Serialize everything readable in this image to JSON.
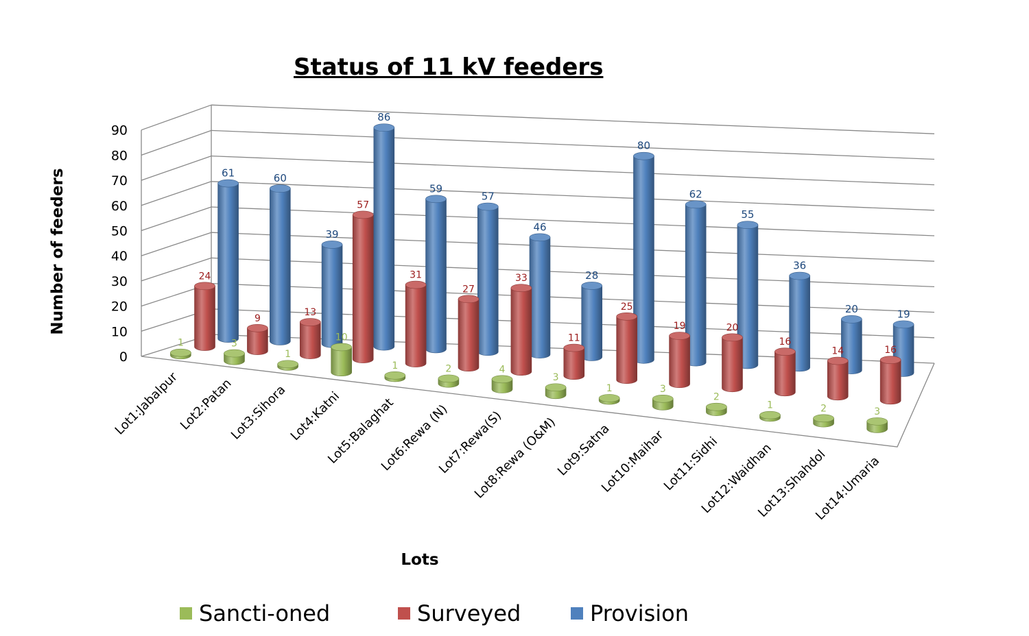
{
  "chart_data": {
    "type": "bar",
    "title": "Status of 11 kV feeders",
    "xlabel": "Lots",
    "ylabel": "Number of feeders",
    "ylim": [
      0,
      90
    ],
    "yticks": [
      "0",
      "10",
      "20",
      "30",
      "40",
      "50",
      "60",
      "70",
      "80",
      "90"
    ],
    "grid": true,
    "legend_position": "bottom",
    "categories": [
      "Lot1:Jabalpur",
      "Lot2:Patan",
      "Lot3:Sihora",
      "Lot4:Katni",
      "Lot5:Balaghat",
      "Lot6:Rewa (N)",
      "Lot7:Rewa(S)",
      "Lot8:Rewa (O&M)",
      "Lot9:Satna",
      "Lot10:Maihar",
      "Lot11:Sidhi",
      "Lot12:Waidhan",
      "Lot13:Shahdol",
      "Lot14:Umaria"
    ],
    "series": [
      {
        "name": "Sancti-oned",
        "color": "#9bbb59",
        "label_color": "#9bbb59",
        "values": [
          1,
          3,
          1,
          10,
          1,
          2,
          4,
          3,
          1,
          3,
          2,
          1,
          2,
          3
        ]
      },
      {
        "name": "Surveyed",
        "color": "#c0504d",
        "label_color": "#9b1c1c",
        "values": [
          24,
          9,
          13,
          57,
          31,
          27,
          33,
          11,
          25,
          19,
          20,
          16,
          14,
          16
        ]
      },
      {
        "name": "Provision",
        "color": "#4f81bd",
        "label_color": "#1f497d",
        "values": [
          61,
          60,
          39,
          86,
          59,
          57,
          46,
          28,
          80,
          62,
          55,
          36,
          20,
          19
        ]
      }
    ]
  }
}
